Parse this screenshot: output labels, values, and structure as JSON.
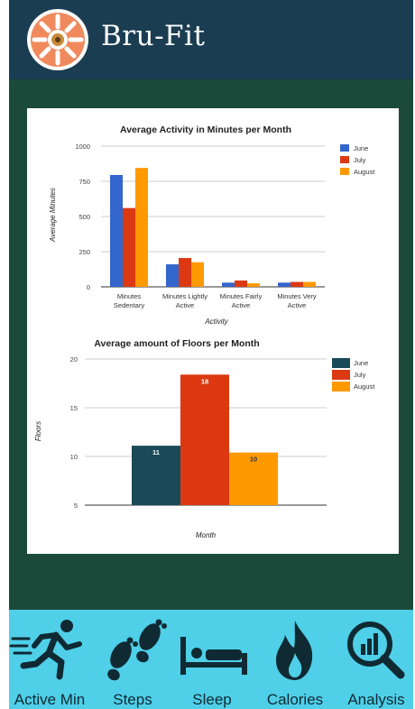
{
  "app": {
    "title": "Bru-Fit"
  },
  "nav": {
    "items": [
      {
        "label": "Active Min",
        "icon": "running-person-icon"
      },
      {
        "label": "Steps",
        "icon": "footprints-icon"
      },
      {
        "label": "Sleep",
        "icon": "bed-icon"
      },
      {
        "label": "Calories",
        "icon": "flame-icon"
      },
      {
        "label": "Analysis",
        "icon": "magnifier-chart-icon"
      }
    ]
  },
  "colors": {
    "header_bg": "#1a3d52",
    "panel_bg": "#1b4a3a",
    "nav_bg": "#4fcfe8",
    "june_activity": "#3366cc",
    "july": "#dc3912",
    "august": "#ff9900",
    "june_floors": "#1a4a58"
  },
  "chart_data": [
    {
      "type": "bar",
      "title": "Average Activity in Minutes per Month",
      "xlabel": "Activity",
      "ylabel": "Average Minutes",
      "categories": [
        "Minutes Sedentary",
        "Minutes Lightly Active",
        "Minutes Fairly Active",
        "Minutes Very Active"
      ],
      "category_lines": [
        [
          "Minutes",
          "Sedentary"
        ],
        [
          "Minutes Lightly",
          "Active"
        ],
        [
          "Minutes Fairly",
          "Active"
        ],
        [
          "Minutes Very",
          "Active"
        ]
      ],
      "yticks": [
        0,
        250,
        500,
        750,
        1000
      ],
      "ylim": [
        0,
        1000
      ],
      "grid": true,
      "legend_position": "right",
      "series": [
        {
          "name": "June",
          "values": [
            795,
            160,
            30,
            30
          ]
        },
        {
          "name": "July",
          "values": [
            560,
            205,
            45,
            35
          ]
        },
        {
          "name": "August",
          "values": [
            845,
            175,
            25,
            35
          ]
        }
      ]
    },
    {
      "type": "bar",
      "title": "Average amount of Floors per Month",
      "xlabel": "Month",
      "ylabel": "Floors",
      "categories": [
        ""
      ],
      "yticks": [
        5,
        10,
        15,
        20
      ],
      "ylim": [
        5,
        20
      ],
      "grid": true,
      "legend_position": "right",
      "series": [
        {
          "name": "June",
          "values": [
            11.1
          ],
          "label": "11"
        },
        {
          "name": "July",
          "values": [
            18.4
          ],
          "label": "18"
        },
        {
          "name": "August",
          "values": [
            10.4
          ],
          "label": "10"
        }
      ]
    }
  ]
}
